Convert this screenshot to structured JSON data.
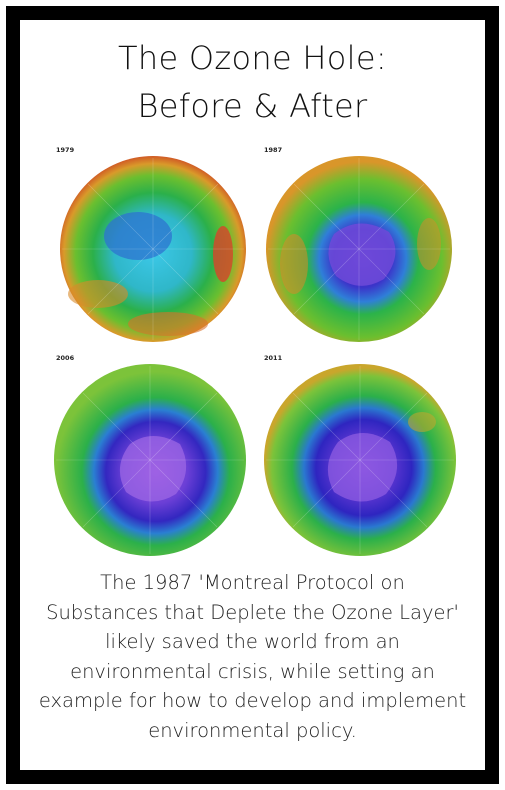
{
  "title": {
    "line1": "The Ozone Hole:",
    "line2": "Before & After"
  },
  "maps": [
    {
      "year": "1979",
      "icon": "ozone-globe-1979"
    },
    {
      "year": "1987",
      "icon": "ozone-globe-1987"
    },
    {
      "year": "2006",
      "icon": "ozone-globe-2006"
    },
    {
      "year": "2011",
      "icon": "ozone-globe-2011"
    }
  ],
  "caption": {
    "lines": [
      "The 1987 'Montreal Protocol on",
      "Substances that Deplete the Ozone Layer'",
      "likely saved the world from an",
      "environmental crisis, while setting an",
      "example for how to develop and implement",
      "environmental policy."
    ]
  },
  "colors": {
    "border": "#000000",
    "ozone_high": "#e0502a",
    "ozone_mid": "#2fb34a",
    "ozone_low": "#3a2fc8",
    "hole_center": "#9a4fe0"
  }
}
